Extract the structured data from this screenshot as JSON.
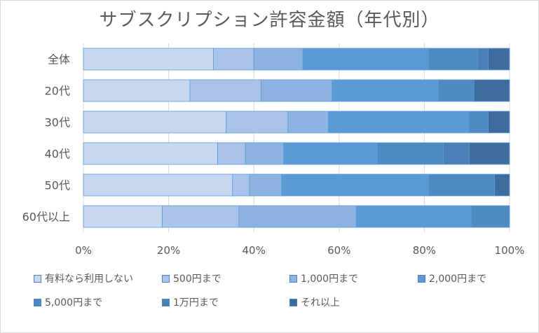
{
  "colors": [
    "#c6d7ef",
    "#a9c4e8",
    "#8db3e2",
    "#5b9bd5",
    "#4e89c1",
    "#4a7fb7",
    "#3e6c9c"
  ],
  "chart_data": {
    "type": "bar",
    "orientation": "horizontal",
    "stacked": "percent",
    "title": "サブスクリプション許容金額（年代別）",
    "categories": [
      "全体",
      "20代",
      "30代",
      "40代",
      "50代",
      "60代以上"
    ],
    "series": [
      {
        "name": "有料なら利用しない",
        "values": [
          30.5,
          30,
          33.5,
          31.5,
          35,
          18.5
        ]
      },
      {
        "name": "500円まで",
        "values": [
          9.5,
          20,
          14.5,
          6.5,
          4,
          18
        ]
      },
      {
        "name": "1,000円まで",
        "values": [
          11.5,
          20,
          9.5,
          9,
          7.5,
          27.5
        ]
      },
      {
        "name": "2,000円まで",
        "values": [
          29.5,
          30,
          33,
          22,
          34.5,
          27
        ]
      },
      {
        "name": "5,000円まで",
        "values": [
          11.5,
          10,
          4.5,
          15.5,
          15.5,
          9
        ]
      },
      {
        "name": "1万円まで",
        "values": [
          2.5,
          0,
          0,
          6,
          0,
          0
        ]
      },
      {
        "name": "それ以上",
        "values": [
          5,
          10,
          5,
          9.5,
          3.5,
          0
        ]
      }
    ],
    "xlim": [
      0,
      100
    ],
    "xticks": [
      "0%",
      "20%",
      "40%",
      "60%",
      "80%",
      "100%"
    ],
    "grid": true,
    "legend_position": "bottom"
  }
}
